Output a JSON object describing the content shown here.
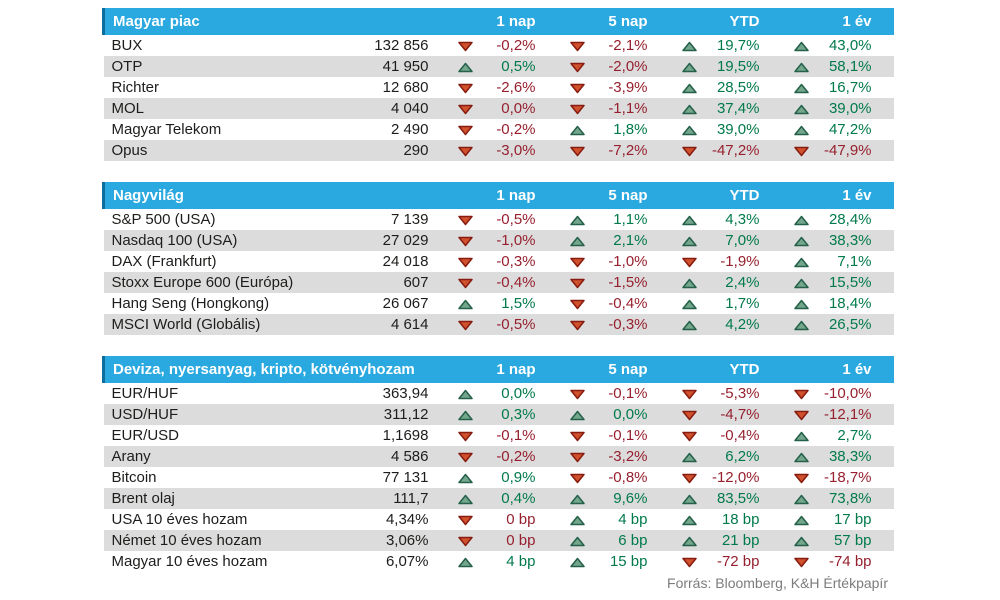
{
  "page": {
    "source_note": "Forrás: Bloomberg, K&H Értékpapír"
  },
  "columns": [
    "1 nap",
    "5 nap",
    "YTD",
    "1 év"
  ],
  "colors": {
    "header_bg": "#29a9e0",
    "header_accent": "#0d6d9c",
    "zebra_row": "#dcdcdc",
    "positive_text": "#007a4b",
    "negative_text": "#96202e",
    "up_arrow_fill": "#74a68c",
    "up_arrow_stroke": "#24604a",
    "down_arrow_fill": "#d0512c",
    "down_arrow_stroke": "#871c10"
  },
  "icons": {
    "up": "up-triangle-icon",
    "down": "down-triangle-icon"
  },
  "tables": [
    {
      "title": "Magyar piac",
      "rows": [
        {
          "name": "BUX",
          "value": "132 856",
          "changes": [
            {
              "dir": "down",
              "text": "-0,2%"
            },
            {
              "dir": "down",
              "text": "-2,1%"
            },
            {
              "dir": "up",
              "text": "19,7%"
            },
            {
              "dir": "up",
              "text": "43,0%"
            }
          ]
        },
        {
          "name": "OTP",
          "value": "41 950",
          "changes": [
            {
              "dir": "up",
              "text": "0,5%"
            },
            {
              "dir": "down",
              "text": "-2,0%"
            },
            {
              "dir": "up",
              "text": "19,5%"
            },
            {
              "dir": "up",
              "text": "58,1%"
            }
          ]
        },
        {
          "name": "Richter",
          "value": "12 680",
          "changes": [
            {
              "dir": "down",
              "text": "-2,6%"
            },
            {
              "dir": "down",
              "text": "-3,9%"
            },
            {
              "dir": "up",
              "text": "28,5%"
            },
            {
              "dir": "up",
              "text": "16,7%"
            }
          ]
        },
        {
          "name": "MOL",
          "value": "4 040",
          "changes": [
            {
              "dir": "down",
              "text": "0,0%"
            },
            {
              "dir": "down",
              "text": "-1,1%"
            },
            {
              "dir": "up",
              "text": "37,4%"
            },
            {
              "dir": "up",
              "text": "39,0%"
            }
          ]
        },
        {
          "name": "Magyar Telekom",
          "value": "2 490",
          "changes": [
            {
              "dir": "down",
              "text": "-0,2%"
            },
            {
              "dir": "up",
              "text": "1,8%"
            },
            {
              "dir": "up",
              "text": "39,0%"
            },
            {
              "dir": "up",
              "text": "47,2%"
            }
          ]
        },
        {
          "name": "Opus",
          "value": "290",
          "changes": [
            {
              "dir": "down",
              "text": "-3,0%"
            },
            {
              "dir": "down",
              "text": "-7,2%"
            },
            {
              "dir": "down",
              "text": "-47,2%"
            },
            {
              "dir": "down",
              "text": "-47,9%"
            }
          ]
        }
      ]
    },
    {
      "title": "Nagyvilág",
      "rows": [
        {
          "name": "S&P 500 (USA)",
          "value": "7 139",
          "changes": [
            {
              "dir": "down",
              "text": "-0,5%"
            },
            {
              "dir": "up",
              "text": "1,1%"
            },
            {
              "dir": "up",
              "text": "4,3%"
            },
            {
              "dir": "up",
              "text": "28,4%"
            }
          ]
        },
        {
          "name": "Nasdaq 100 (USA)",
          "value": "27 029",
          "changes": [
            {
              "dir": "down",
              "text": "-1,0%"
            },
            {
              "dir": "up",
              "text": "2,1%"
            },
            {
              "dir": "up",
              "text": "7,0%"
            },
            {
              "dir": "up",
              "text": "38,3%"
            }
          ]
        },
        {
          "name": "DAX (Frankfurt)",
          "value": "24 018",
          "changes": [
            {
              "dir": "down",
              "text": "-0,3%"
            },
            {
              "dir": "down",
              "text": "-1,0%"
            },
            {
              "dir": "down",
              "text": "-1,9%"
            },
            {
              "dir": "up",
              "text": "7,1%"
            }
          ]
        },
        {
          "name": "Stoxx Europe 600 (Európa)",
          "value": "607",
          "changes": [
            {
              "dir": "down",
              "text": "-0,4%"
            },
            {
              "dir": "down",
              "text": "-1,5%"
            },
            {
              "dir": "up",
              "text": "2,4%"
            },
            {
              "dir": "up",
              "text": "15,5%"
            }
          ]
        },
        {
          "name": "Hang Seng (Hongkong)",
          "value": "26 067",
          "changes": [
            {
              "dir": "up",
              "text": "1,5%"
            },
            {
              "dir": "down",
              "text": "-0,4%"
            },
            {
              "dir": "up",
              "text": "1,7%"
            },
            {
              "dir": "up",
              "text": "18,4%"
            }
          ]
        },
        {
          "name": "MSCI World (Globális)",
          "value": "4 614",
          "changes": [
            {
              "dir": "down",
              "text": "-0,5%"
            },
            {
              "dir": "down",
              "text": "-0,3%"
            },
            {
              "dir": "up",
              "text": "4,2%"
            },
            {
              "dir": "up",
              "text": "26,5%"
            }
          ]
        }
      ]
    },
    {
      "title": "Deviza, nyersanyag, kripto, kötvényhozam",
      "rows": [
        {
          "name": "EUR/HUF",
          "value": "363,94",
          "changes": [
            {
              "dir": "up",
              "text": "0,0%"
            },
            {
              "dir": "down",
              "text": "-0,1%"
            },
            {
              "dir": "down",
              "text": "-5,3%"
            },
            {
              "dir": "down",
              "text": "-10,0%"
            }
          ]
        },
        {
          "name": "USD/HUF",
          "value": "311,12",
          "changes": [
            {
              "dir": "up",
              "text": "0,3%"
            },
            {
              "dir": "up",
              "text": "0,0%"
            },
            {
              "dir": "down",
              "text": "-4,7%"
            },
            {
              "dir": "down",
              "text": "-12,1%"
            }
          ]
        },
        {
          "name": "EUR/USD",
          "value": "1,1698",
          "changes": [
            {
              "dir": "down",
              "text": "-0,1%"
            },
            {
              "dir": "down",
              "text": "-0,1%"
            },
            {
              "dir": "down",
              "text": "-0,4%"
            },
            {
              "dir": "up",
              "text": "2,7%"
            }
          ]
        },
        {
          "name": "Arany",
          "value": "4 586",
          "changes": [
            {
              "dir": "down",
              "text": "-0,2%"
            },
            {
              "dir": "down",
              "text": "-3,2%"
            },
            {
              "dir": "up",
              "text": "6,2%"
            },
            {
              "dir": "up",
              "text": "38,3%"
            }
          ]
        },
        {
          "name": "Bitcoin",
          "value": "77 131",
          "changes": [
            {
              "dir": "up",
              "text": "0,9%"
            },
            {
              "dir": "down",
              "text": "-0,8%"
            },
            {
              "dir": "down",
              "text": "-12,0%"
            },
            {
              "dir": "down",
              "text": "-18,7%"
            }
          ]
        },
        {
          "name": "Brent olaj",
          "value": "111,7",
          "changes": [
            {
              "dir": "up",
              "text": "0,4%"
            },
            {
              "dir": "up",
              "text": "9,6%"
            },
            {
              "dir": "up",
              "text": "83,5%"
            },
            {
              "dir": "up",
              "text": "73,8%"
            }
          ]
        },
        {
          "name": "USA 10 éves hozam",
          "value": "4,34%",
          "changes": [
            {
              "dir": "down",
              "text": "0 bp"
            },
            {
              "dir": "up",
              "text": "4 bp"
            },
            {
              "dir": "up",
              "text": "18 bp"
            },
            {
              "dir": "up",
              "text": "17 bp"
            }
          ]
        },
        {
          "name": "Német 10 éves hozam",
          "value": "3,06%",
          "changes": [
            {
              "dir": "down",
              "text": "0 bp"
            },
            {
              "dir": "up",
              "text": "6 bp"
            },
            {
              "dir": "up",
              "text": "21 bp"
            },
            {
              "dir": "up",
              "text": "57 bp"
            }
          ]
        },
        {
          "name": "Magyar 10 éves hozam",
          "value": "6,07%",
          "changes": [
            {
              "dir": "up",
              "text": "4 bp"
            },
            {
              "dir": "up",
              "text": "15 bp"
            },
            {
              "dir": "down",
              "text": "-72 bp"
            },
            {
              "dir": "down",
              "text": "-74 bp"
            }
          ]
        }
      ]
    }
  ]
}
